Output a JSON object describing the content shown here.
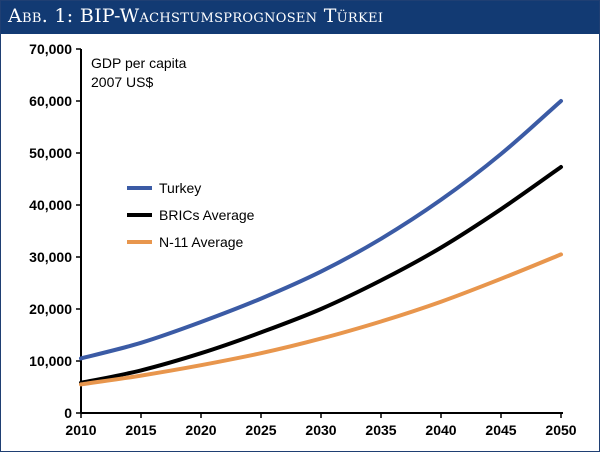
{
  "chart_data": {
    "type": "line",
    "title": "Abb. 1: BIP-Wachstumsprognosen Türkei",
    "ylabel": "GDP per capita",
    "ylabel_unit": "2007 US$",
    "xlim": [
      2010,
      2050
    ],
    "ylim": [
      0,
      70000
    ],
    "x_ticks": [
      "2010",
      "2015",
      "2020",
      "2025",
      "2030",
      "2035",
      "2040",
      "2045",
      "2050"
    ],
    "y_ticks": [
      "0",
      "10,000",
      "20,000",
      "30,000",
      "40,000",
      "50,000",
      "60,000",
      "70,000"
    ],
    "grid": false,
    "legend_position": "left-center",
    "x": [
      2010,
      2015,
      2020,
      2025,
      2030,
      2035,
      2040,
      2045,
      2050
    ],
    "series": [
      {
        "name": "Turkey",
        "color": "#3b5ba5",
        "values": [
          10500,
          13500,
          17500,
          22000,
          27200,
          33500,
          41000,
          49800,
          60000
        ]
      },
      {
        "name": "BRICs Average",
        "color": "#000000",
        "values": [
          5800,
          8200,
          11500,
          15500,
          20000,
          25500,
          31800,
          39200,
          47300
        ]
      },
      {
        "name": "N-11 Average",
        "color": "#e8964d",
        "values": [
          5500,
          7200,
          9200,
          11500,
          14300,
          17600,
          21400,
          25800,
          30500
        ]
      }
    ]
  }
}
